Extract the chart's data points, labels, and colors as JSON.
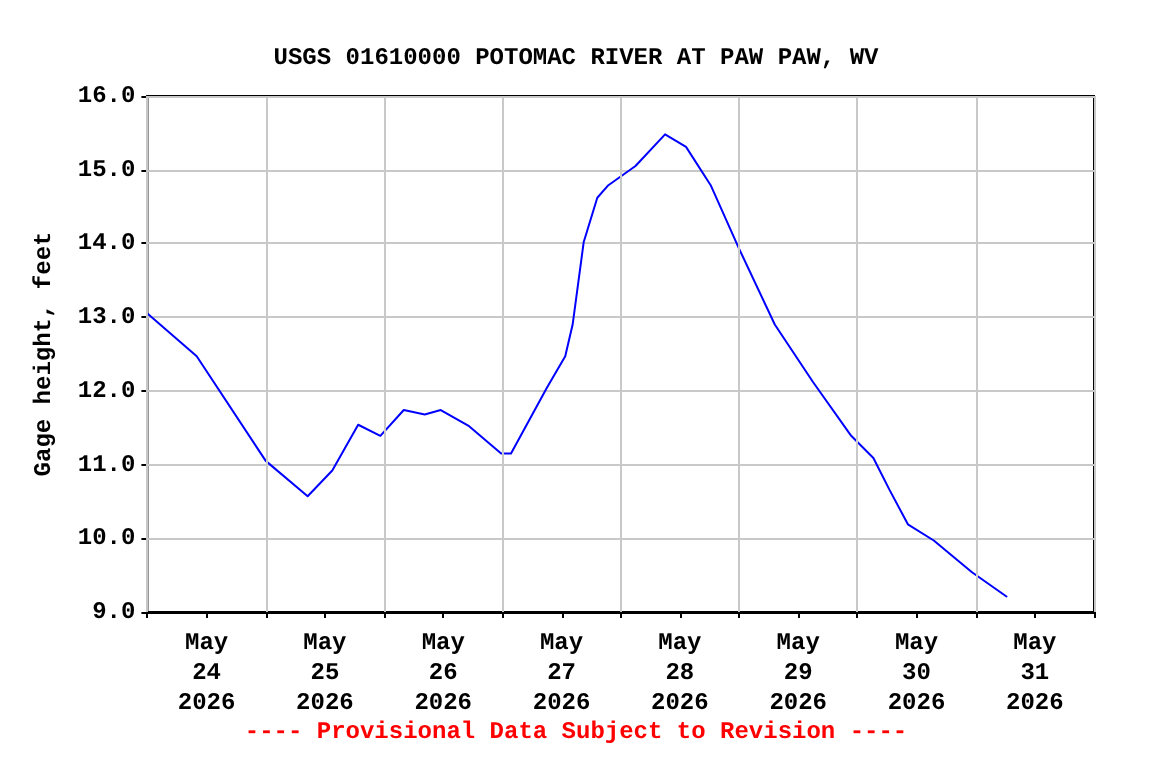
{
  "chart_data": {
    "type": "line",
    "title": "USGS 01610000 POTOMAC RIVER AT PAW PAW, WV",
    "ylabel": "Gage height, feet",
    "annotations": [
      "---- Provisional Data Subject to Revision ----"
    ],
    "x": [
      "2026-05-24T00:00",
      "2026-05-24T10:00",
      "2026-05-25T00:00",
      "2026-05-25T08:30",
      "2026-05-25T13:30",
      "2026-05-25T18:45",
      "2026-05-25T23:15",
      "2026-05-26T04:00",
      "2026-05-26T08:15",
      "2026-05-26T11:30",
      "2026-05-26T17:15",
      "2026-05-26T23:45",
      "2026-05-27T01:45",
      "2026-05-27T09:00",
      "2026-05-27T12:45",
      "2026-05-27T14:15",
      "2026-05-27T16:30",
      "2026-05-27T19:15",
      "2026-05-27T21:30",
      "2026-05-28T03:00",
      "2026-05-28T09:00",
      "2026-05-28T13:15",
      "2026-05-28T18:15",
      "2026-05-29T00:00",
      "2026-05-29T07:15",
      "2026-05-29T15:00",
      "2026-05-29T22:45",
      "2026-05-30T03:15",
      "2026-05-30T06:30",
      "2026-05-30T10:15",
      "2026-05-30T15:30",
      "2026-05-30T23:15",
      "2026-05-31T06:15"
    ],
    "series": [
      {
        "color": "#0000ff",
        "values": [
          13.05,
          12.47,
          11.05,
          10.57,
          10.92,
          11.54,
          11.39,
          11.74,
          11.68,
          11.74,
          11.52,
          11.15,
          11.15,
          12.04,
          12.47,
          12.9,
          14.02,
          14.62,
          14.79,
          15.05,
          15.48,
          15.31,
          14.79,
          13.93,
          12.9,
          12.12,
          11.39,
          11.09,
          10.66,
          10.19,
          9.97,
          9.54,
          9.21
        ]
      }
    ],
    "xlim": [
      "2026-05-24T00:00",
      "2026-06-01T00:00"
    ],
    "xticks": [
      {
        "value": "2026-05-24T00:00",
        "label": null
      },
      {
        "value": "2026-05-24T12:00",
        "label": "May\n24\n2026"
      },
      {
        "value": "2026-05-25T00:00",
        "label": null
      },
      {
        "value": "2026-05-25T12:00",
        "label": "May\n25\n2026"
      },
      {
        "value": "2026-05-26T00:00",
        "label": null
      },
      {
        "value": "2026-05-26T12:00",
        "label": "May\n26\n2026"
      },
      {
        "value": "2026-05-27T00:00",
        "label": null
      },
      {
        "value": "2026-05-27T12:00",
        "label": "May\n27\n2026"
      },
      {
        "value": "2026-05-28T00:00",
        "label": null
      },
      {
        "value": "2026-05-28T12:00",
        "label": "May\n28\n2026"
      },
      {
        "value": "2026-05-29T00:00",
        "label": null
      },
      {
        "value": "2026-05-29T12:00",
        "label": "May\n29\n2026"
      },
      {
        "value": "2026-05-30T00:00",
        "label": null
      },
      {
        "value": "2026-05-30T12:00",
        "label": "May\n30\n2026"
      },
      {
        "value": "2026-05-31T00:00",
        "label": null
      },
      {
        "value": "2026-05-31T12:00",
        "label": "May\n31\n2026"
      },
      {
        "value": "2026-06-01T00:00",
        "label": null
      }
    ],
    "ylim": [
      9,
      16
    ],
    "yticks": [
      {
        "value": 9,
        "label": "9.0"
      },
      {
        "value": 10,
        "label": "10.0"
      },
      {
        "value": 11,
        "label": "11.0"
      },
      {
        "value": 12,
        "label": "12.0"
      },
      {
        "value": 13,
        "label": "13.0"
      },
      {
        "value": 14,
        "label": "14.0"
      },
      {
        "value": 15,
        "label": "15.0"
      },
      {
        "value": 16,
        "label": "16.0"
      }
    ],
    "grid": true,
    "marker": "none",
    "line_style": "solid"
  }
}
